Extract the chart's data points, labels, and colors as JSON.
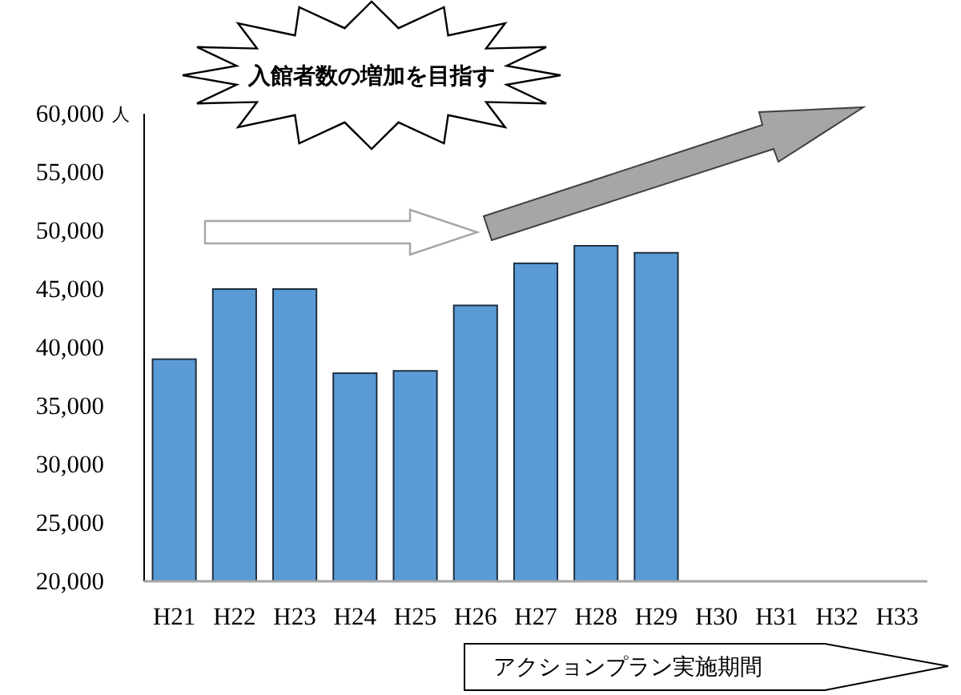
{
  "chart_data": {
    "type": "bar",
    "categories": [
      "H21",
      "H22",
      "H23",
      "H24",
      "H25",
      "H26",
      "H27",
      "H28",
      "H29",
      "H30",
      "H31",
      "H32",
      "H33"
    ],
    "values": [
      39000,
      45000,
      45000,
      37800,
      38000,
      43600,
      47200,
      48700,
      48100,
      null,
      null,
      null,
      null
    ],
    "color": "#5b9bd5",
    "ylim": [
      20000,
      60000
    ],
    "yticks": [
      {
        "value": 20000,
        "label": "20,000"
      },
      {
        "value": 25000,
        "label": "25,000"
      },
      {
        "value": 30000,
        "label": "30,000"
      },
      {
        "value": 35000,
        "label": "35,000"
      },
      {
        "value": 40000,
        "label": "40,000"
      },
      {
        "value": 45000,
        "label": "45,000"
      },
      {
        "value": 50000,
        "label": "50,000"
      },
      {
        "value": 55000,
        "label": "55,000"
      },
      {
        "value": 60000,
        "label": "60,000"
      }
    ],
    "ylabel": "人",
    "annotations": [
      "入館者数の増加を目指す",
      "アクションプラン実施期間"
    ]
  }
}
